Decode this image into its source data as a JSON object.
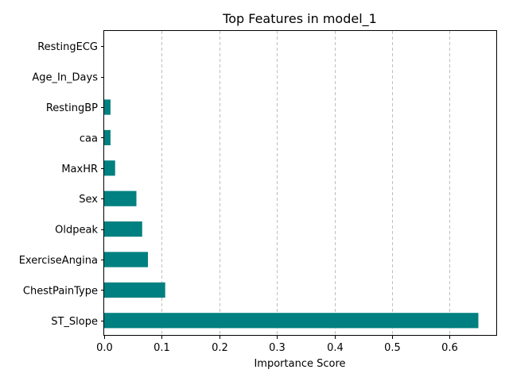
{
  "chart_data": {
    "type": "bar",
    "orientation": "horizontal",
    "title": "Top Features in model_1",
    "xlabel": "Importance Score",
    "ylabel": "",
    "categories": [
      "ST_Slope",
      "ChestPainType",
      "ExerciseAngina",
      "Oldpeak",
      "Sex",
      "MaxHR",
      "caa",
      "RestingBP",
      "Age_In_Days",
      "RestingECG"
    ],
    "values": [
      0.65,
      0.106,
      0.076,
      0.066,
      0.056,
      0.019,
      0.011,
      0.011,
      0.0,
      0.0
    ],
    "xlim": [
      0,
      0.6825
    ],
    "xticks": [
      0.0,
      0.1,
      0.2,
      0.3,
      0.4,
      0.5,
      0.6
    ],
    "xtick_labels": [
      "0.0",
      "0.1",
      "0.2",
      "0.3",
      "0.4",
      "0.5",
      "0.6"
    ],
    "grid": "x-dashed",
    "bar_color": "#008080",
    "legend": "none"
  }
}
